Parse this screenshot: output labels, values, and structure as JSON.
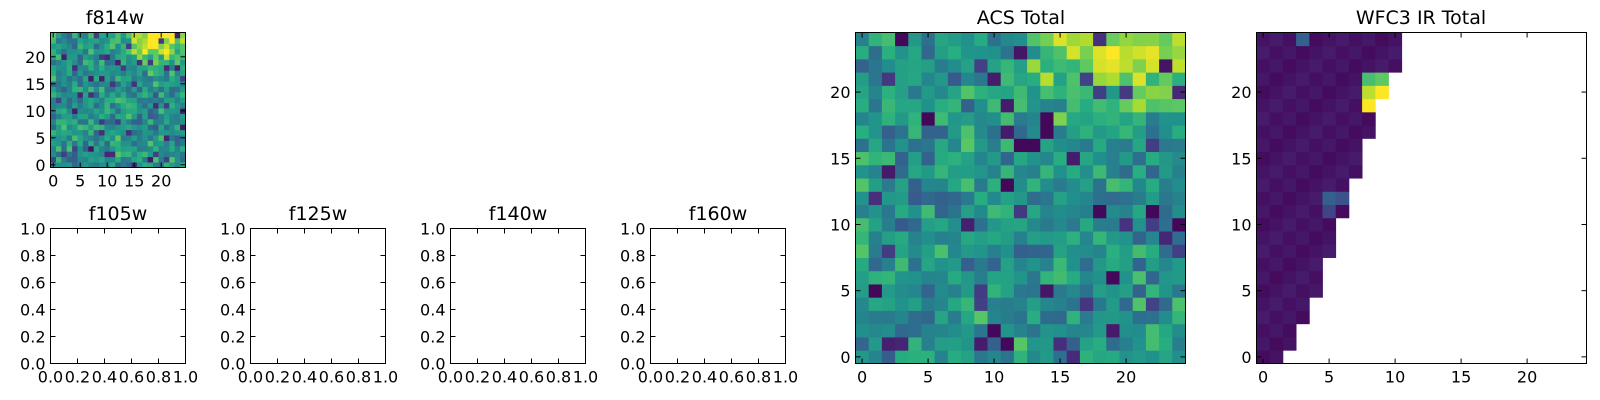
{
  "figure": {
    "colormap": "viridis",
    "colormap_stops": [
      "#440154",
      "#472f7d",
      "#3b528b",
      "#2c728e",
      "#21918c",
      "#28ae80",
      "#5ec962",
      "#addc30",
      "#fde725"
    ]
  },
  "chart_data": [
    {
      "type": "heatmap",
      "title": "f814w",
      "grid_size": [
        25,
        25
      ],
      "xlim": [
        -0.5,
        24.5
      ],
      "ylim": [
        -0.5,
        24.5
      ],
      "xticks": [
        0,
        5,
        10,
        15,
        20
      ],
      "yticks": [
        0,
        5,
        10,
        15,
        20
      ],
      "xtick_labels": [
        "0",
        "5",
        "10",
        "15",
        "20"
      ],
      "ytick_labels": [
        "0",
        "5",
        "10",
        "15",
        "20"
      ],
      "value_range": [
        0,
        1
      ],
      "values": [],
      "seed": 17,
      "bright_region": "upper right",
      "origin": "lower"
    },
    {
      "type": "heatmap",
      "title": "f105w",
      "empty": true,
      "xlim": [
        0,
        1
      ],
      "ylim": [
        0,
        1
      ],
      "xtick_labels": [
        "0.0",
        "0.2",
        "0.4",
        "0.6",
        "0.8",
        "1.0"
      ],
      "ytick_labels": [
        "0.0",
        "0.2",
        "0.4",
        "0.6",
        "0.8",
        "1.0"
      ]
    },
    {
      "type": "heatmap",
      "title": "f125w",
      "empty": true,
      "xlim": [
        0,
        1
      ],
      "ylim": [
        0,
        1
      ],
      "xtick_labels": [
        "0.0",
        "0.2",
        "0.4",
        "0.6",
        "0.8",
        "1.0"
      ],
      "ytick_labels": [
        "0.0",
        "0.2",
        "0.4",
        "0.6",
        "0.8",
        "1.0"
      ]
    },
    {
      "type": "heatmap",
      "title": "f140w",
      "empty": true,
      "xlim": [
        0,
        1
      ],
      "ylim": [
        0,
        1
      ],
      "xtick_labels": [
        "0.0",
        "0.2",
        "0.4",
        "0.6",
        "0.8",
        "1.0"
      ],
      "ytick_labels": [
        "0.0",
        "0.2",
        "0.4",
        "0.6",
        "0.8",
        "1.0"
      ]
    },
    {
      "type": "heatmap",
      "title": "f160w",
      "empty": true,
      "xlim": [
        0,
        1
      ],
      "ylim": [
        0,
        1
      ],
      "xtick_labels": [
        "0.0",
        "0.2",
        "0.4",
        "0.6",
        "0.8",
        "1.0"
      ],
      "ytick_labels": [
        "0.0",
        "0.2",
        "0.4",
        "0.6",
        "0.8",
        "1.0"
      ]
    },
    {
      "type": "heatmap",
      "title": "ACS Total",
      "grid_size": [
        25,
        25
      ],
      "xlim": [
        -0.5,
        24.5
      ],
      "ylim": [
        -0.5,
        24.5
      ],
      "xticks": [
        0,
        5,
        10,
        15,
        20
      ],
      "yticks": [
        0,
        5,
        10,
        15,
        20
      ],
      "xtick_labels": [
        "0",
        "5",
        "10",
        "15",
        "20"
      ],
      "ytick_labels": [
        "0",
        "5",
        "10",
        "15",
        "20"
      ],
      "value_range": [
        0,
        1
      ],
      "values": [],
      "seed": 41,
      "bright_region": "upper right",
      "dark_cells": [
        [
          3,
          24
        ],
        [
          5,
          18
        ],
        [
          13,
          16
        ],
        [
          14,
          18
        ],
        [
          11,
          13
        ],
        [
          14,
          17
        ],
        [
          12,
          16
        ],
        [
          18,
          11
        ],
        [
          22,
          11
        ],
        [
          24,
          10
        ],
        [
          1,
          5
        ],
        [
          10,
          2
        ],
        [
          11,
          1
        ],
        [
          19,
          6
        ]
      ],
      "origin": "lower"
    },
    {
      "type": "heatmap",
      "title": "WFC3 IR Total",
      "grid_size": [
        25,
        25
      ],
      "xlim": [
        -0.5,
        24.5
      ],
      "ylim": [
        -0.5,
        24.5
      ],
      "xticks": [
        0,
        5,
        10,
        15,
        20
      ],
      "yticks": [
        0,
        5,
        10,
        15,
        20
      ],
      "xtick_labels": [
        "0",
        "5",
        "10",
        "15",
        "20"
      ],
      "ytick_labels": [
        "0",
        "5",
        "10",
        "15",
        "20"
      ],
      "value_range": [
        0,
        1
      ],
      "valid_columns_per_row": [
        2,
        3,
        3,
        4,
        4,
        5,
        5,
        5,
        6,
        6,
        6,
        7,
        7,
        7,
        8,
        8,
        8,
        9,
        9,
        9,
        10,
        10,
        11,
        11,
        11
      ],
      "bright_cells": [
        {
          "x": 8,
          "y": 20,
          "value": 0.9
        },
        {
          "x": 9,
          "y": 20,
          "value": 1.0
        },
        {
          "x": 8,
          "y": 19,
          "value": 1.0
        },
        {
          "x": 8,
          "y": 21,
          "value": 0.7
        },
        {
          "x": 9,
          "y": 21,
          "value": 0.75
        },
        {
          "x": 5,
          "y": 12,
          "value": 0.3
        },
        {
          "x": 6,
          "y": 12,
          "value": 0.25
        },
        {
          "x": 5,
          "y": 11,
          "value": 0.2
        },
        {
          "x": 3,
          "y": 24,
          "value": 0.3
        }
      ],
      "background_value": 0.03,
      "origin": "lower"
    }
  ]
}
